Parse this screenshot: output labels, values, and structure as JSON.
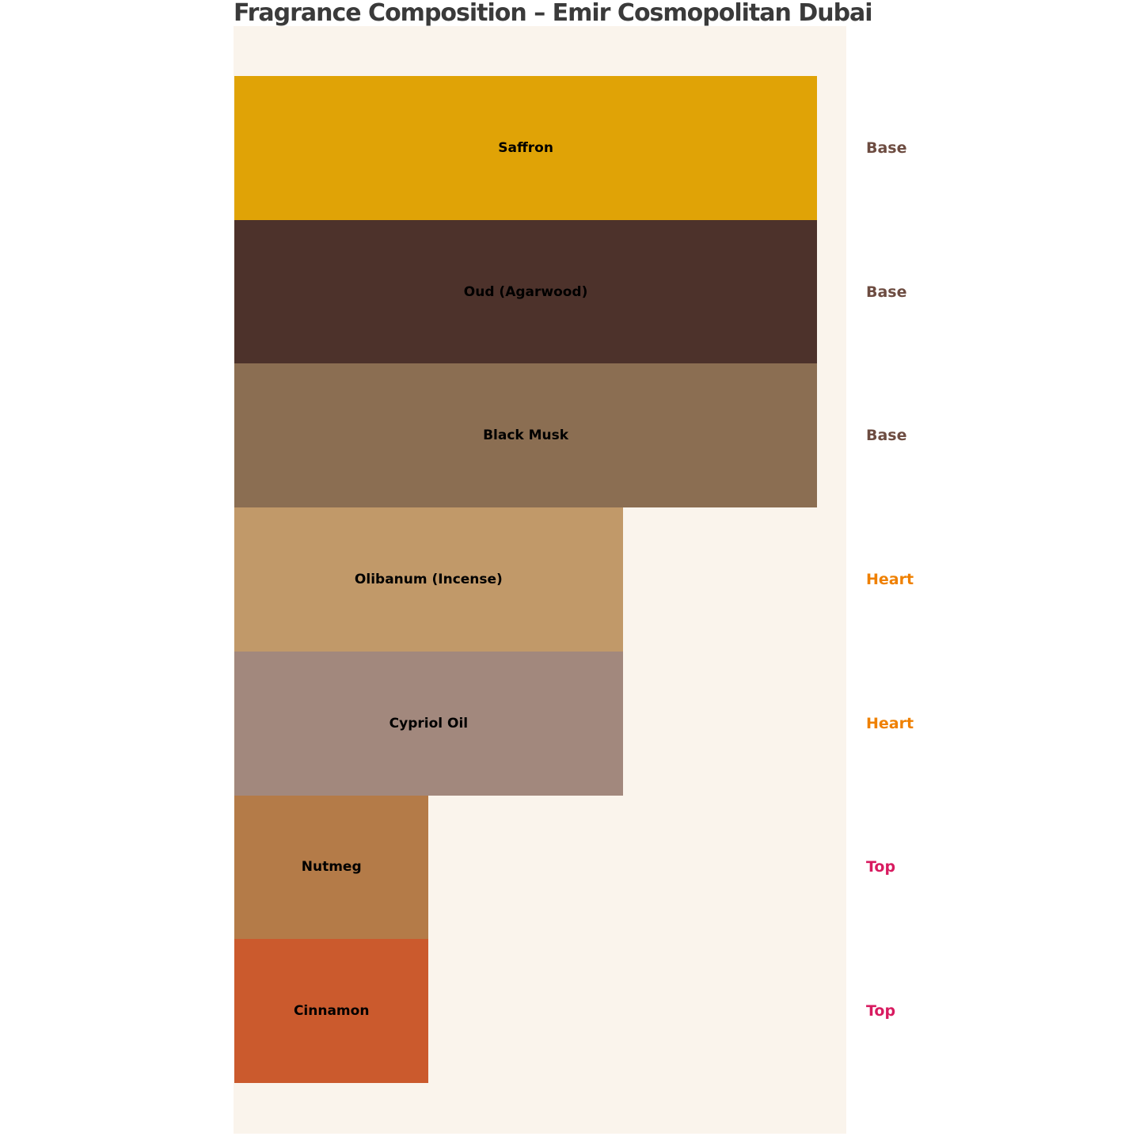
{
  "page": {
    "background": "#FFFFFF"
  },
  "chart_data": {
    "type": "bar",
    "orientation": "horizontal",
    "title": "Fragrance Composition – Emir Cosmopolitan Dubai",
    "title_color": "#3A3A3A",
    "plot_background": "#FAF4EC",
    "xlabel": "",
    "ylabel": "",
    "xlim": [
      0,
      3.15
    ],
    "grid": false,
    "legend": false,
    "bar_label_color": "#000000",
    "categories": [
      "Saffron",
      "Oud (Agarwood)",
      "Black Musk",
      "Olibanum (Incense)",
      "Cypriol Oil",
      "Nutmeg",
      "Cinnamon"
    ],
    "values": [
      3,
      3,
      3,
      2,
      2,
      1,
      1
    ],
    "note_roles": [
      "Base",
      "Base",
      "Base",
      "Heart",
      "Heart",
      "Top",
      "Top"
    ],
    "role_colors": {
      "Base": "#6D4C41",
      "Heart": "#EF8000",
      "Top": "#D81B60"
    },
    "bars": [
      {
        "label": "Saffron",
        "value": 3,
        "note_role": "Base",
        "bar_color": "#E0A306",
        "role_color": "#6D4C41"
      },
      {
        "label": "Oud (Agarwood)",
        "value": 3,
        "note_role": "Base",
        "bar_color": "#4D322B",
        "role_color": "#6D4C41"
      },
      {
        "label": "Black Musk",
        "value": 3,
        "note_role": "Base",
        "bar_color": "#8B6E52",
        "role_color": "#6D4C41"
      },
      {
        "label": "Olibanum (Incense)",
        "value": 2,
        "note_role": "Heart",
        "bar_color": "#C19969",
        "role_color": "#EF8000"
      },
      {
        "label": "Cypriol Oil",
        "value": 2,
        "note_role": "Heart",
        "bar_color": "#A2887D",
        "role_color": "#EF8000"
      },
      {
        "label": "Nutmeg",
        "value": 1,
        "note_role": "Top",
        "bar_color": "#B47B48",
        "role_color": "#D81B60"
      },
      {
        "label": "Cinnamon",
        "value": 1,
        "note_role": "Top",
        "bar_color": "#CB5A2D",
        "role_color": "#D81B60"
      }
    ]
  }
}
